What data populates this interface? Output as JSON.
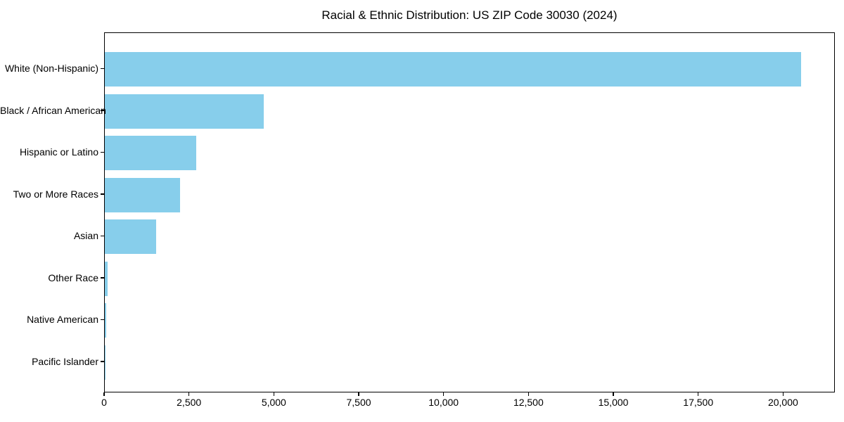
{
  "chart_data": {
    "type": "bar",
    "orientation": "horizontal",
    "title": "Racial & Ethnic Distribution: US ZIP Code 30030 (2024)",
    "xlabel": "",
    "ylabel": "",
    "categories": [
      "White (Non-Hispanic)",
      "Black / African American",
      "Hispanic or Latino",
      "Two or More Races",
      "Asian",
      "Other Race",
      "Native American",
      "Pacific Islander"
    ],
    "values": [
      20500,
      4690,
      2700,
      2220,
      1510,
      80,
      50,
      10
    ],
    "xlim": [
      0,
      21525
    ],
    "xticks": [
      0,
      2500,
      5000,
      7500,
      10000,
      12500,
      15000,
      17500,
      20000
    ],
    "xtick_labels": [
      "0",
      "2,500",
      "5,000",
      "7,500",
      "10,000",
      "12,500",
      "15,000",
      "17,500",
      "20,000"
    ],
    "bar_color": "#87CEEB",
    "axis_color": "#000000",
    "background_color": "#ffffff",
    "grid": false,
    "legend": null
  }
}
